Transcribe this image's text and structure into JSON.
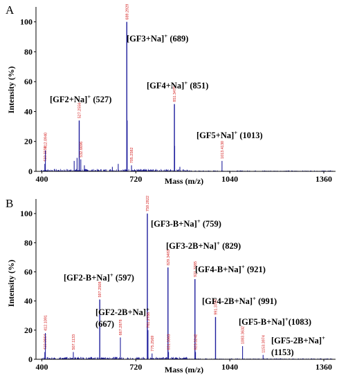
{
  "chart_data": [
    {
      "type": "bar",
      "panel_letter": "A",
      "xlabel": "Mass (m/z)",
      "ylabel": "Intensity (%)",
      "xlim": [
        380,
        1400
      ],
      "ylim": [
        0,
        110
      ],
      "xticks": [
        "400",
        "720",
        "1040",
        "1360"
      ],
      "yticks": [
        "0",
        "20",
        "40",
        "60",
        "80",
        "100"
      ],
      "grid": false,
      "peaks": [
        {
          "mz": 410.1159,
          "intensity": 5,
          "label": "410.1159"
        },
        {
          "mz": 412.094,
          "intensity": 14,
          "label": "412.0940"
        },
        {
          "mz": 510,
          "intensity": 7,
          "label": ""
        },
        {
          "mz": 520,
          "intensity": 9,
          "label": ""
        },
        {
          "mz": 527.2556,
          "intensity": 34,
          "label": "527.2556"
        },
        {
          "mz": 532.6696,
          "intensity": 8,
          "label": "532.6696"
        },
        {
          "mz": 545,
          "intensity": 4,
          "label": ""
        },
        {
          "mz": 640,
          "intensity": 3,
          "label": ""
        },
        {
          "mz": 660,
          "intensity": 5,
          "label": ""
        },
        {
          "mz": 689.2929,
          "intensity": 100,
          "label": "689.2929"
        },
        {
          "mz": 690.3,
          "intensity": 34,
          "label": ""
        },
        {
          "mz": 705.2582,
          "intensity": 4,
          "label": "705.2582"
        },
        {
          "mz": 851.3476,
          "intensity": 45,
          "label": "851.3476"
        },
        {
          "mz": 852.4,
          "intensity": 17,
          "label": ""
        },
        {
          "mz": 870,
          "intensity": 3,
          "label": ""
        },
        {
          "mz": 1013.413,
          "intensity": 7,
          "label": "1013.4130"
        }
      ],
      "annotations": [
        {
          "text": "[GF2+Na]",
          "sup": "+",
          "suffix": " (527)"
        },
        {
          "text": "[GF3+Na]",
          "sup": "+",
          "suffix": " (689)"
        },
        {
          "text": "[GF4+Na]",
          "sup": "+",
          "suffix": " (851)"
        },
        {
          "text": "[GF5+Na]",
          "sup": "+",
          "suffix": " (1013)"
        }
      ]
    },
    {
      "type": "bar",
      "panel_letter": "B",
      "xlabel": "Mass (m/z)",
      "ylabel": "Intensity (%)",
      "xlim": [
        380,
        1400
      ],
      "ylim": [
        0,
        110
      ],
      "xticks": [
        "400",
        "720",
        "1040",
        "1360"
      ],
      "yticks": [
        "0",
        "20",
        "40",
        "60",
        "80",
        "100"
      ],
      "grid": false,
      "peaks": [
        {
          "mz": 410.0664,
          "intensity": 5,
          "label": "410.0664"
        },
        {
          "mz": 412.1091,
          "intensity": 18,
          "label": "412.1091"
        },
        {
          "mz": 507.1133,
          "intensity": 5,
          "label": "507.1133"
        },
        {
          "mz": 597.2508,
          "intensity": 41,
          "label": "597.2508"
        },
        {
          "mz": 667.2878,
          "intensity": 15,
          "label": "667.2878"
        },
        {
          "mz": 759.2822,
          "intensity": 100,
          "label": "759.2822"
        },
        {
          "mz": 761.2786,
          "intensity": 20,
          "label": "761.2786"
        },
        {
          "mz": 775.2569,
          "intensity": 4,
          "label": "775.2569"
        },
        {
          "mz": 829.3483,
          "intensity": 63,
          "label": "829.3483"
        },
        {
          "mz": 831.3363,
          "intensity": 5,
          "label": "831.3363"
        },
        {
          "mz": 921.3385,
          "intensity": 55,
          "label": "921.3385"
        },
        {
          "mz": 923.3242,
          "intensity": 5,
          "label": "923.3242"
        },
        {
          "mz": 991.3767,
          "intensity": 29,
          "label": "991.3767"
        },
        {
          "mz": 1083.3632,
          "intensity": 9,
          "label": "1083.3632"
        },
        {
          "mz": 1153.3974,
          "intensity": 3,
          "label": "1153.3974"
        }
      ],
      "annotations": [
        {
          "text": "[GF3-B+Na]",
          "sup": "+",
          "suffix": " (759)"
        },
        {
          "text": "[GF3-2B+Na]",
          "sup": "+",
          "suffix": " (829)"
        },
        {
          "text": "[GF2-B+Na]",
          "sup": "+",
          "suffix": " (597)"
        },
        {
          "text": "[GF4-B+Na]",
          "sup": "+",
          "suffix": " (921)"
        },
        {
          "text": "[GF2-2B+Na]",
          "sup": "+",
          "suffix": ""
        },
        {
          "text": "(667)",
          "sup": "",
          "suffix": ""
        },
        {
          "text": "[GF4-2B+Na]",
          "sup": "+",
          "suffix": " (991)"
        },
        {
          "text": "[GF5-B+Na]",
          "sup": "+",
          "suffix": "(1083)"
        },
        {
          "text": "[GF5-2B+Na]",
          "sup": "+",
          "suffix": ""
        },
        {
          "text": "(1153)",
          "sup": "",
          "suffix": ""
        }
      ]
    }
  ],
  "colors": {
    "peak": "#1c1c9c",
    "peak_label": "#d42020",
    "axis": "#000000"
  }
}
